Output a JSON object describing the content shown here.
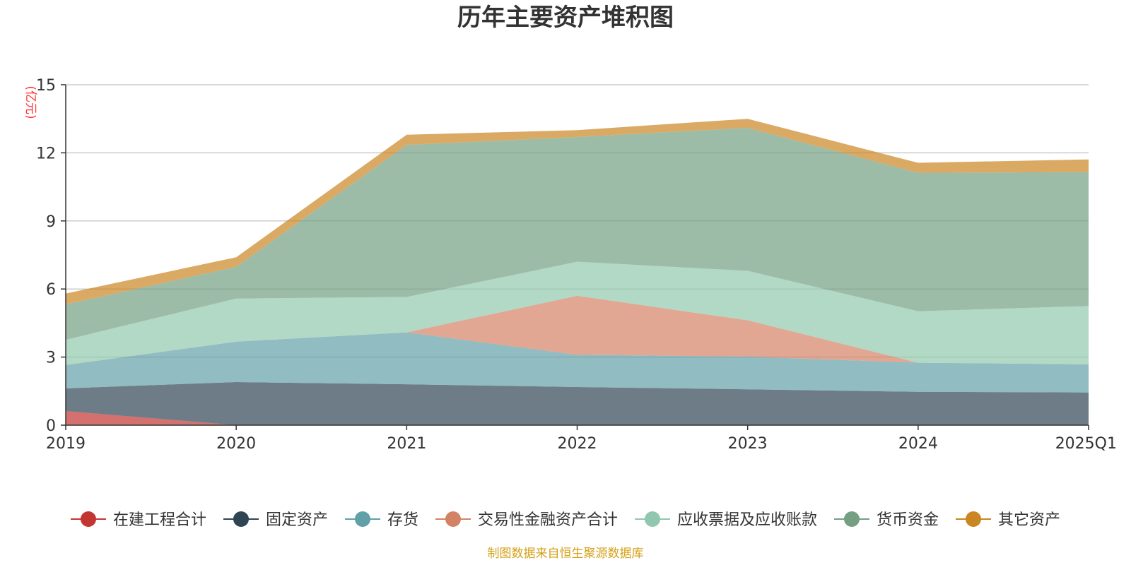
{
  "chart_data": {
    "type": "area",
    "stacked": true,
    "title": "历年主要资产堆积图",
    "ylabel": "(亿元)",
    "categories": [
      "2019",
      "2020",
      "2021",
      "2022",
      "2023",
      "2024",
      "2025Q1"
    ],
    "yticks": [
      "0",
      "3",
      "6",
      "9",
      "12",
      "15"
    ],
    "ylim": [
      0,
      15
    ],
    "grid": true,
    "legend_position": "bottom",
    "source_note": "制图数据来自恒生聚源数据库",
    "series": [
      {
        "name": "在建工程合计",
        "color": "#c23531",
        "values": [
          0.62,
          0.0,
          0.0,
          0.0,
          0.0,
          0.0,
          0.0
        ]
      },
      {
        "name": "固定资产",
        "color": "#2f4554",
        "values": [
          1.0,
          1.9,
          1.8,
          1.68,
          1.58,
          1.47,
          1.44
        ]
      },
      {
        "name": "存货",
        "color": "#61a0a8",
        "values": [
          1.03,
          1.78,
          2.29,
          1.42,
          1.44,
          1.28,
          1.24
        ]
      },
      {
        "name": "交易性金融资产合计",
        "color": "#d48265",
        "values": [
          0.0,
          0.0,
          0.0,
          2.6,
          1.6,
          0.0,
          0.0
        ]
      },
      {
        "name": "应收票据及应收账款",
        "color": "#91c7ae",
        "values": [
          1.11,
          1.9,
          1.56,
          1.5,
          2.18,
          2.27,
          2.57
        ]
      },
      {
        "name": "货币资金",
        "color": "#749f83",
        "values": [
          1.56,
          1.4,
          6.7,
          5.5,
          6.3,
          6.1,
          5.9
        ]
      },
      {
        "name": "其它资产",
        "color": "#ca8622",
        "values": [
          0.48,
          0.42,
          0.45,
          0.3,
          0.4,
          0.44,
          0.56
        ]
      }
    ]
  }
}
